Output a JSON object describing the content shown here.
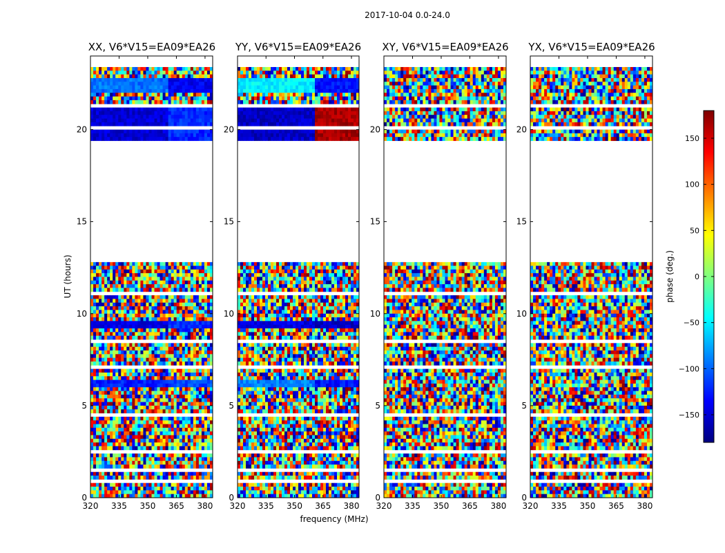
{
  "chart_data": {
    "type": "heatmap",
    "suptitle": "2017-10-04 0.0-24.0",
    "xlabel": "frequency (MHz)",
    "ylabel": "UT (hours)",
    "xlim": [
      320,
      384
    ],
    "ylim": [
      0,
      24
    ],
    "xticks": [
      320,
      335,
      350,
      365,
      380
    ],
    "yticks": [
      0,
      5,
      10,
      15,
      20
    ],
    "colorbar": {
      "label": "phase (deg.)",
      "range": [
        -180,
        180
      ],
      "ticks": [
        -150,
        -100,
        -50,
        0,
        50,
        100,
        150
      ],
      "tick_labels": [
        "−150",
        "−100",
        "−50",
        "0",
        "50",
        "100",
        "150"
      ],
      "colormap": "jet",
      "colors": [
        "#00007f",
        "#0000ff",
        "#007fff",
        "#00ffff",
        "#7fff7f",
        "#ffff00",
        "#ff7f00",
        "#ff0000",
        "#7f0000"
      ]
    },
    "data_gap_hours": [
      12.8,
      19.4
    ],
    "panels": [
      {
        "title": "XX, V6*V15=EA09*EA26",
        "pol": "XX",
        "coherent_bands": [
          {
            "t": [
              22.0,
              22.8
            ],
            "phase_low_freq": -95,
            "phase_high_freq": -140,
            "break_mhz": 361
          },
          {
            "t": [
              19.5,
              21.2
            ],
            "phase_low_freq": -150,
            "phase_high_freq": -120,
            "break_mhz": 361
          },
          {
            "t": [
              9.2,
              9.7
            ],
            "phase_low_freq": -145,
            "phase_high_freq": -120,
            "break_mhz": 361
          },
          {
            "t": [
              6.1,
              6.5
            ],
            "phase_low_freq": -125,
            "phase_high_freq": -110,
            "break_mhz": 361
          }
        ]
      },
      {
        "title": "YY, V6*V15=EA09*EA26",
        "pol": "YY",
        "coherent_bands": [
          {
            "t": [
              22.0,
              22.8
            ],
            "phase_low_freq": -50,
            "phase_high_freq": -130,
            "break_mhz": 361
          },
          {
            "t": [
              19.5,
              21.2
            ],
            "phase_low_freq": -155,
            "phase_high_freq": 165,
            "break_mhz": 361
          },
          {
            "t": [
              9.2,
              9.7
            ],
            "phase_low_freq": -145,
            "phase_high_freq": -155,
            "break_mhz": 361
          },
          {
            "t": [
              6.1,
              6.5
            ],
            "phase_low_freq": -90,
            "phase_high_freq": -130,
            "break_mhz": 361
          }
        ]
      },
      {
        "title": "XY, V6*V15=EA09*EA26",
        "pol": "XY",
        "coherent_bands": []
      },
      {
        "title": "YX, V6*V15=EA09*EA26",
        "pol": "YX",
        "coherent_bands": []
      }
    ]
  }
}
